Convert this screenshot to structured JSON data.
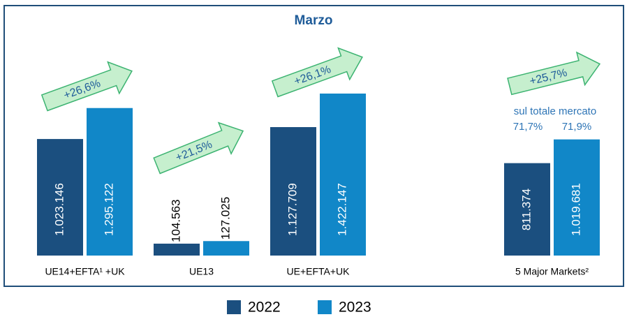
{
  "chart_data": {
    "type": "bar",
    "title": "Marzo",
    "categories": [
      "UE14+EFTA¹ +UK",
      "UE13",
      "UE+EFTA+UK",
      "5 Major Markets²"
    ],
    "series": [
      {
        "name": "2022",
        "color": "#1b4f7f",
        "values": [
          1023146,
          104563,
          1127709,
          811374
        ],
        "value_labels": [
          "1.023.146",
          "104.563",
          "1.127.709",
          "811.374"
        ]
      },
      {
        "name": "2023",
        "color": "#1187c8",
        "values": [
          1295122,
          127025,
          1422147,
          1019681
        ],
        "value_labels": [
          "1.295.122",
          "127.025",
          "1.422.147",
          "1.019.681"
        ]
      }
    ],
    "growth_labels": [
      "+26,6%",
      "+21,5%",
      "+26,1%",
      "+25,7%"
    ],
    "annotation": {
      "text": "sul totale mercato",
      "shares": [
        "71,7%",
        "71,9%"
      ]
    },
    "legend": "bottom"
  }
}
